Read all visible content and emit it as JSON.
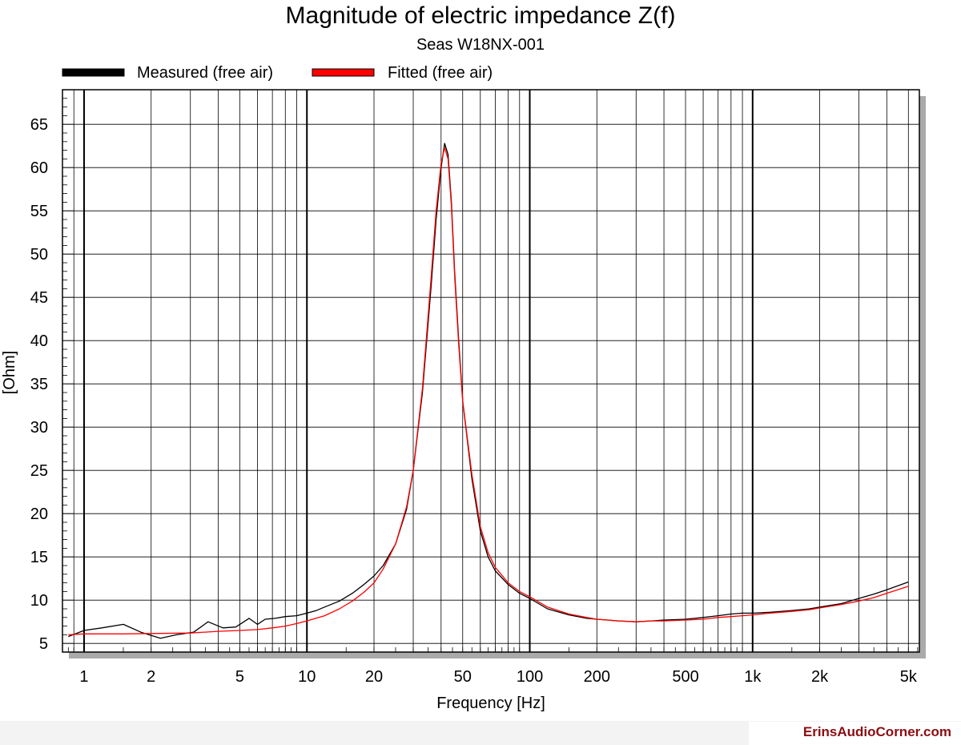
{
  "chart_data": {
    "type": "line",
    "title": "Magnitude of electric impedance Z(f)",
    "subtitle": "Seas W18NX-001",
    "xlabel": "Frequency [Hz]",
    "ylabel": "[Ohm]",
    "xscale": "log",
    "xlim": [
      0.8,
      5600
    ],
    "ylim": [
      4,
      69
    ],
    "grid": true,
    "legend_position": "top-left",
    "x_ticks": [
      {
        "value": 1,
        "label": "1"
      },
      {
        "value": 2,
        "label": "2"
      },
      {
        "value": 5,
        "label": "5"
      },
      {
        "value": 10,
        "label": "10"
      },
      {
        "value": 20,
        "label": "20"
      },
      {
        "value": 50,
        "label": "50"
      },
      {
        "value": 100,
        "label": "100"
      },
      {
        "value": 200,
        "label": "200"
      },
      {
        "value": 500,
        "label": "500"
      },
      {
        "value": 1000,
        "label": "1k"
      },
      {
        "value": 2000,
        "label": "2k"
      },
      {
        "value": 5000,
        "label": "5k"
      }
    ],
    "y_ticks": [
      5,
      10,
      15,
      20,
      25,
      30,
      35,
      40,
      45,
      50,
      55,
      60,
      65
    ],
    "series": [
      {
        "name": "Measured (free air)",
        "color": "#000000",
        "x": [
          0.85,
          1.0,
          1.2,
          1.5,
          1.8,
          2.2,
          2.6,
          3.1,
          3.6,
          4.2,
          4.8,
          5.5,
          6.0,
          6.5,
          7.2,
          8.0,
          9.0,
          10,
          11,
          12,
          14,
          16,
          18,
          20,
          22,
          25,
          28,
          30,
          33,
          36,
          38,
          40,
          41.5,
          43,
          44.5,
          46,
          48,
          50,
          55,
          60,
          65,
          70,
          80,
          90,
          100,
          120,
          150,
          180,
          200,
          250,
          300,
          350,
          400,
          500,
          600,
          700,
          800,
          900,
          1000,
          1200,
          1500,
          1800,
          2000,
          2500,
          3000,
          3500,
          4000,
          5000
        ],
        "y": [
          5.8,
          6.5,
          6.8,
          7.2,
          6.3,
          5.6,
          6.0,
          6.3,
          7.5,
          6.8,
          6.9,
          7.9,
          7.2,
          7.8,
          7.9,
          8.1,
          8.2,
          8.5,
          8.8,
          9.2,
          9.9,
          10.8,
          11.8,
          12.8,
          14.0,
          16.5,
          20.5,
          25.0,
          34.0,
          46.0,
          54.0,
          60.0,
          62.8,
          61.5,
          56.0,
          48.0,
          40.0,
          33.0,
          24.0,
          18.0,
          15.0,
          13.4,
          11.8,
          10.8,
          10.2,
          9.0,
          8.3,
          7.9,
          7.8,
          7.6,
          7.5,
          7.6,
          7.7,
          7.8,
          8.0,
          8.2,
          8.4,
          8.5,
          8.5,
          8.6,
          8.8,
          9.0,
          9.2,
          9.6,
          10.2,
          10.7,
          11.2,
          12.1
        ]
      },
      {
        "name": "Fitted (free air)",
        "color": "#ff0000",
        "x": [
          0.85,
          1.0,
          1.5,
          2.0,
          3.0,
          4.0,
          5.0,
          6.0,
          7.0,
          8.0,
          9.0,
          10,
          12,
          14,
          16,
          18,
          20,
          22,
          25,
          28,
          30,
          33,
          36,
          38,
          40,
          41.5,
          43,
          44.5,
          46,
          48,
          50,
          55,
          60,
          65,
          70,
          80,
          90,
          100,
          120,
          150,
          180,
          200,
          250,
          300,
          350,
          400,
          500,
          600,
          700,
          800,
          900,
          1000,
          1200,
          1500,
          1800,
          2000,
          2500,
          3000,
          3500,
          4000,
          5000
        ],
        "y": [
          6.0,
          6.1,
          6.1,
          6.15,
          6.2,
          6.4,
          6.5,
          6.6,
          6.8,
          7.0,
          7.3,
          7.6,
          8.2,
          9.0,
          9.9,
          10.9,
          12.0,
          13.6,
          16.5,
          20.8,
          25.0,
          34.5,
          47.0,
          55.0,
          60.5,
          62.3,
          61.0,
          55.5,
          47.5,
          39.5,
          33.0,
          24.5,
          18.5,
          15.5,
          13.8,
          12.0,
          11.0,
          10.4,
          9.2,
          8.4,
          8.0,
          7.8,
          7.6,
          7.5,
          7.6,
          7.6,
          7.7,
          7.8,
          8.0,
          8.1,
          8.2,
          8.3,
          8.5,
          8.7,
          8.9,
          9.1,
          9.5,
          9.9,
          10.3,
          10.8,
          11.6
        ]
      }
    ]
  },
  "watermark": "ErinsAudioCorner.com"
}
